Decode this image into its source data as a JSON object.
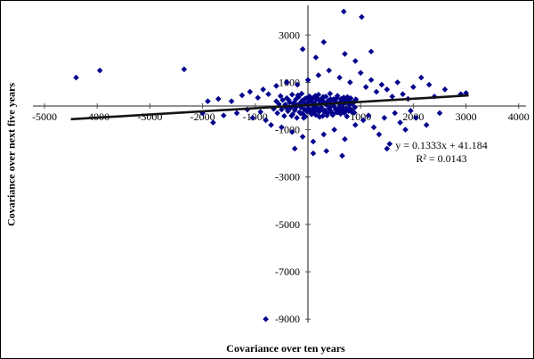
{
  "chart_data": {
    "type": "scatter",
    "title": "",
    "xlabel": "Covariance over ten years",
    "ylabel": "Covariance over next five years",
    "xlim": [
      -5000,
      4000
    ],
    "ylim": [
      -9000,
      3000
    ],
    "x_ticks": [
      -5000,
      -4000,
      -3000,
      -2000,
      -1000,
      1000,
      2000,
      3000,
      4000
    ],
    "y_ticks": [
      3000,
      1000,
      -1000,
      -3000,
      -5000,
      -7000,
      -9000
    ],
    "grid": false,
    "legend": false,
    "marker": "diamond",
    "marker_color": "#00008B",
    "axis_color": "#4d4d4d",
    "trendline": {
      "slope": 0.1333,
      "intercept": 41.184,
      "x_start": -4500,
      "x_end": 3050,
      "color": "#141414"
    },
    "annotation": {
      "equation": "y = 0.1333x + 41.184",
      "r_squared": "R² = 0.0143"
    },
    "points": [
      [
        -650,
        -120
      ],
      [
        -600,
        200
      ],
      [
        -580,
        -300
      ],
      [
        -550,
        80
      ],
      [
        -520,
        420
      ],
      [
        -500,
        -150
      ],
      [
        -480,
        250
      ],
      [
        -450,
        -420
      ],
      [
        -430,
        60
      ],
      [
        -400,
        330
      ],
      [
        -380,
        -220
      ],
      [
        -350,
        150
      ],
      [
        -330,
        -80
      ],
      [
        -300,
        480
      ],
      [
        -290,
        -350
      ],
      [
        -270,
        90
      ],
      [
        -250,
        -180
      ],
      [
        -230,
        280
      ],
      [
        -210,
        -500
      ],
      [
        -200,
        30
      ],
      [
        -180,
        380
      ],
      [
        -160,
        -260
      ],
      [
        -150,
        120
      ],
      [
        -130,
        -60
      ],
      [
        -120,
        520
      ],
      [
        -100,
        -320
      ],
      [
        -90,
        180
      ],
      [
        -70,
        -140
      ],
      [
        -60,
        300
      ],
      [
        -50,
        -450
      ],
      [
        -40,
        70
      ],
      [
        -20,
        -230
      ],
      [
        0,
        140
      ],
      [
        10,
        -90
      ],
      [
        30,
        410
      ],
      [
        50,
        -280
      ],
      [
        60,
        220
      ],
      [
        80,
        -160
      ],
      [
        100,
        350
      ],
      [
        110,
        -40
      ],
      [
        130,
        90
      ],
      [
        150,
        -380
      ],
      [
        160,
        260
      ],
      [
        180,
        -120
      ],
      [
        200,
        480
      ],
      [
        210,
        -250
      ],
      [
        230,
        130
      ],
      [
        250,
        -60
      ],
      [
        270,
        320
      ],
      [
        280,
        -420
      ],
      [
        300,
        180
      ],
      [
        320,
        -180
      ],
      [
        340,
        400
      ],
      [
        350,
        60
      ],
      [
        370,
        -300
      ],
      [
        390,
        240
      ],
      [
        400,
        -100
      ],
      [
        420,
        520
      ],
      [
        440,
        -220
      ],
      [
        450,
        110
      ],
      [
        470,
        -380
      ],
      [
        490,
        290
      ],
      [
        500,
        -40
      ],
      [
        520,
        170
      ],
      [
        540,
        -270
      ],
      [
        560,
        430
      ],
      [
        580,
        -130
      ],
      [
        600,
        80
      ],
      [
        620,
        -330
      ],
      [
        640,
        230
      ],
      [
        660,
        -70
      ],
      [
        680,
        360
      ],
      [
        700,
        -200
      ],
      [
        720,
        140
      ],
      [
        740,
        -440
      ],
      [
        760,
        300
      ],
      [
        780,
        -90
      ],
      [
        800,
        200
      ],
      [
        820,
        -160
      ],
      [
        850,
        100
      ],
      [
        880,
        -280
      ],
      [
        900,
        250
      ],
      [
        -420,
        -60
      ],
      [
        -360,
        240
      ],
      [
        -310,
        -410
      ],
      [
        -260,
        160
      ],
      [
        -240,
        -90
      ],
      [
        -190,
        450
      ],
      [
        -140,
        -310
      ],
      [
        -110,
        230
      ],
      [
        -80,
        -500
      ],
      [
        -30,
        330
      ],
      [
        20,
        -170
      ],
      [
        40,
        260
      ],
      [
        70,
        -350
      ],
      [
        90,
        140
      ],
      [
        120,
        -230
      ],
      [
        140,
        430
      ],
      [
        170,
        -80
      ],
      [
        190,
        310
      ],
      [
        220,
        -460
      ],
      [
        240,
        200
      ],
      [
        260,
        -140
      ],
      [
        290,
        390
      ],
      [
        310,
        -240
      ],
      [
        330,
        100
      ],
      [
        360,
        -400
      ],
      [
        380,
        170
      ],
      [
        410,
        -60
      ],
      [
        430,
        290
      ],
      [
        460,
        -330
      ],
      [
        480,
        60
      ],
      [
        510,
        240
      ],
      [
        530,
        -150
      ],
      [
        550,
        340
      ],
      [
        570,
        -260
      ],
      [
        590,
        130
      ],
      [
        610,
        -50
      ],
      [
        630,
        300
      ],
      [
        650,
        -180
      ],
      [
        670,
        90
      ],
      [
        690,
        -290
      ],
      [
        710,
        220
      ],
      [
        730,
        -110
      ],
      [
        750,
        380
      ],
      [
        770,
        -210
      ],
      [
        790,
        60
      ],
      [
        810,
        330
      ],
      [
        830,
        -250
      ],
      [
        860,
        150
      ],
      [
        890,
        -60
      ],
      [
        910,
        280
      ],
      [
        -1450,
        200
      ],
      [
        -1350,
        -300
      ],
      [
        -1250,
        450
      ],
      [
        -1150,
        -150
      ],
      [
        -1100,
        600
      ],
      [
        -1050,
        -500
      ],
      [
        -950,
        350
      ],
      [
        -900,
        -250
      ],
      [
        -850,
        700
      ],
      [
        -800,
        -600
      ],
      [
        -750,
        500
      ],
      [
        -700,
        -800
      ],
      [
        -600,
        850
      ],
      [
        -500,
        -900
      ],
      [
        -400,
        1000
      ],
      [
        -300,
        -1100
      ],
      [
        -200,
        900
      ],
      [
        -100,
        -1300
      ],
      [
        0,
        1100
      ],
      [
        100,
        -1500
      ],
      [
        200,
        1300
      ],
      [
        300,
        -1200
      ],
      [
        400,
        1500
      ],
      [
        500,
        -1000
      ],
      [
        600,
        1200
      ],
      [
        700,
        -1400
      ],
      [
        800,
        1000
      ],
      [
        900,
        -800
      ],
      [
        1000,
        1400
      ],
      [
        1050,
        -600
      ],
      [
        1100,
        800
      ],
      [
        1150,
        -400
      ],
      [
        1200,
        1100
      ],
      [
        1250,
        -900
      ],
      [
        1300,
        600
      ],
      [
        1350,
        -1200
      ],
      [
        1400,
        900
      ],
      [
        1450,
        -500
      ],
      [
        1500,
        700
      ],
      [
        1550,
        -1600
      ],
      [
        1600,
        400
      ],
      [
        1650,
        -300
      ],
      [
        1700,
        1000
      ],
      [
        1750,
        -700
      ],
      [
        1800,
        500
      ],
      [
        1850,
        -1000
      ],
      [
        1900,
        300
      ],
      [
        1950,
        -200
      ],
      [
        2000,
        800
      ],
      [
        2050,
        -500
      ],
      [
        2150,
        1200
      ],
      [
        2250,
        -800
      ],
      [
        2300,
        900
      ],
      [
        2400,
        400
      ],
      [
        2500,
        -300
      ],
      [
        2600,
        700
      ],
      [
        2900,
        500
      ],
      [
        3000,
        550
      ],
      [
        -1600,
        -400
      ],
      [
        -1700,
        300
      ],
      [
        -1800,
        -700
      ],
      [
        -1900,
        200
      ],
      [
        -2000,
        -300
      ],
      [
        -2350,
        1550
      ],
      [
        -3950,
        1500
      ],
      [
        -4400,
        1200
      ],
      [
        680,
        3990
      ],
      [
        1020,
        3760
      ],
      [
        -800,
        -9000
      ],
      [
        -100,
        2400
      ],
      [
        300,
        2700
      ],
      [
        700,
        2200
      ],
      [
        150,
        2050
      ],
      [
        900,
        1900
      ],
      [
        1200,
        2300
      ],
      [
        350,
        -1900
      ],
      [
        650,
        -2100
      ],
      [
        -250,
        -1800
      ],
      [
        1500,
        -1800
      ],
      [
        100,
        -2000
      ]
    ]
  }
}
